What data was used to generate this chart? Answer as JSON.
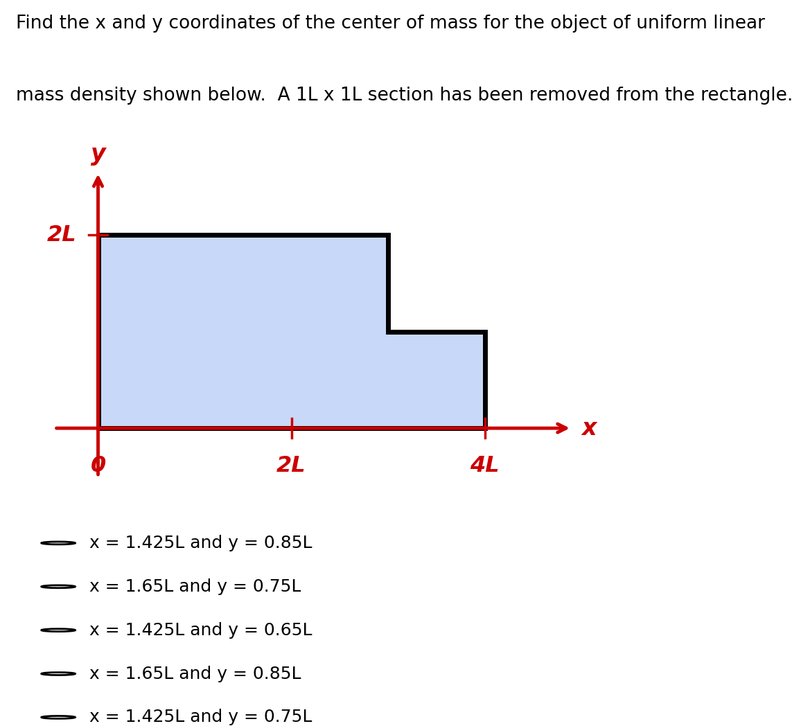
{
  "title_line1": "Find the x and y coordinates of the center of mass for the object of uniform linear",
  "title_line2": "mass density shown below.  A 1L x 1L section has been removed from the rectangle.",
  "shape_fill_color": "#c8d8f8",
  "shape_edge_color": "#000000",
  "shape_linewidth": 5,
  "axis_color": "#cc0000",
  "axis_label_x": "x",
  "axis_label_y": "y",
  "label_2L_x": "2L",
  "label_4L_x": "4L",
  "label_0": "0",
  "label_2L_y": "2L",
  "choices": [
    "x = 1.425L and y = 0.85L",
    "x = 1.65L and y = 0.75L",
    "x = 1.425L and y = 0.65L",
    "x = 1.65L and y = 0.85L",
    "x = 1.425L and y = 0.75L"
  ],
  "title_fontsize": 19,
  "choice_fontsize": 18,
  "red_color": "#cc0000",
  "text_color": "#000000",
  "shape_vertices_x": [
    0,
    4,
    4,
    3,
    3,
    0,
    0
  ],
  "shape_vertices_y": [
    0,
    0,
    1,
    1,
    2,
    2,
    0
  ],
  "xmax": 5.2,
  "ymax": 2.8,
  "xmin": -0.6,
  "ymin": -0.7
}
